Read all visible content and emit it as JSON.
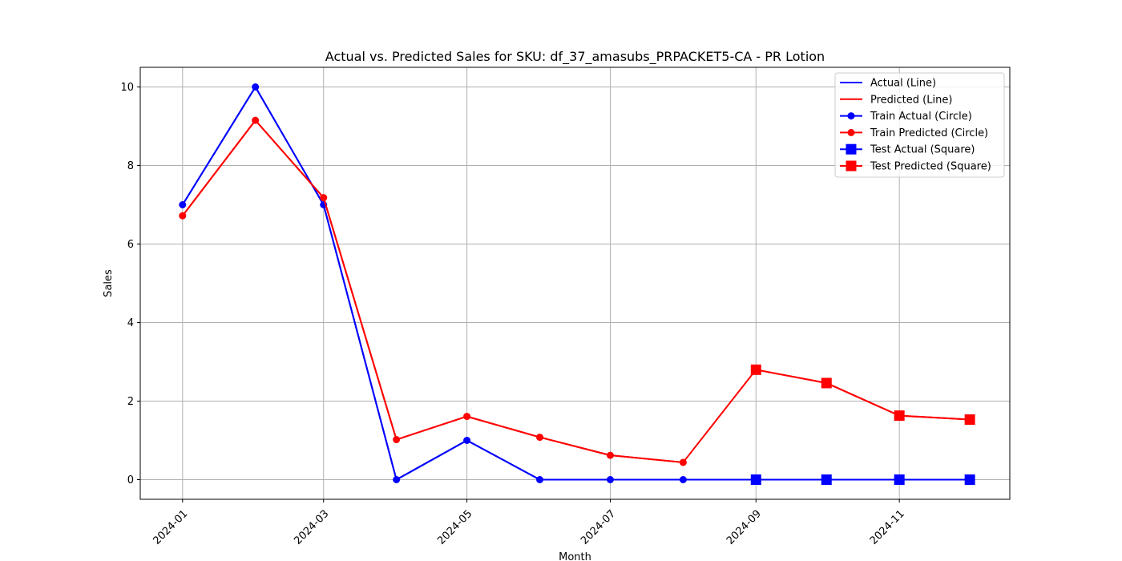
{
  "chart_data": {
    "type": "line",
    "title": "Actual vs. Predicted Sales for SKU: df_37_amasubs_PRPACKET5-CA - PR Lotion",
    "xlabel": "Month",
    "ylabel": "Sales",
    "ylim": [
      -0.5,
      10.5
    ],
    "xlim": [
      "2023-12-14",
      "2024-12-18"
    ],
    "grid": true,
    "legend_position": "top-right",
    "x": [
      "2024-01-01",
      "2024-02-01",
      "2024-03-01",
      "2024-04-01",
      "2024-05-01",
      "2024-06-01",
      "2024-07-01",
      "2024-08-01",
      "2024-09-01",
      "2024-10-01",
      "2024-11-01",
      "2024-12-01"
    ],
    "x_ticks": [
      "2024-01-01",
      "2024-03-01",
      "2024-05-01",
      "2024-07-01",
      "2024-09-01",
      "2024-11-01"
    ],
    "x_tick_labels": [
      "2024-01",
      "2024-03",
      "2024-05",
      "2024-07",
      "2024-09",
      "2024-11"
    ],
    "y_ticks": [
      0,
      2,
      4,
      6,
      8,
      10
    ],
    "y_tick_labels": [
      "0",
      "2",
      "4",
      "6",
      "8",
      "10"
    ],
    "series": [
      {
        "name": "Actual (Line)",
        "color": "#0000ff",
        "marker": "none",
        "values": [
          7,
          10,
          7,
          0,
          1,
          0,
          0,
          0,
          0,
          0,
          0,
          0
        ]
      },
      {
        "name": "Predicted (Line)",
        "color": "#ff0000",
        "marker": "none",
        "values": [
          6.72,
          9.15,
          7.18,
          1.02,
          1.61,
          1.08,
          0.62,
          0.44,
          2.8,
          2.46,
          1.63,
          1.53
        ]
      },
      {
        "name": "Train Actual (Circle)",
        "color": "#0000ff",
        "marker": "circle",
        "values": [
          7,
          10,
          7,
          0,
          1,
          0,
          0,
          0,
          null,
          null,
          null,
          null
        ]
      },
      {
        "name": "Train Predicted (Circle)",
        "color": "#ff0000",
        "marker": "circle",
        "values": [
          6.72,
          9.15,
          7.18,
          1.02,
          1.61,
          1.08,
          0.62,
          0.44,
          null,
          null,
          null,
          null
        ]
      },
      {
        "name": "Test Actual (Square)",
        "color": "#0000ff",
        "marker": "square",
        "values": [
          null,
          null,
          null,
          null,
          null,
          null,
          null,
          null,
          0,
          0,
          0,
          0
        ]
      },
      {
        "name": "Test Predicted (Square)",
        "color": "#ff0000",
        "marker": "square",
        "values": [
          null,
          null,
          null,
          null,
          null,
          null,
          null,
          null,
          2.8,
          2.46,
          1.63,
          1.53
        ]
      }
    ]
  }
}
